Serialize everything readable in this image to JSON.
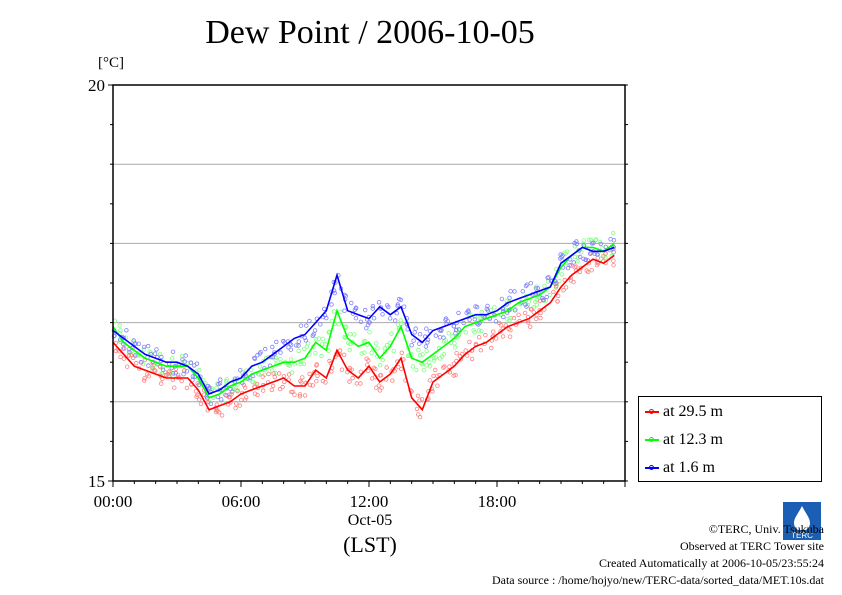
{
  "title": "Dew Point / 2006-10-05",
  "y_unit": "[°C]",
  "x_date": "Oct-05",
  "x_unit": "(LST)",
  "footer": {
    "copyright": "©TERC, Univ. Tsukuba",
    "observed": "Observed at TERC Tower site",
    "created": "Created Automatically at 2006-10-05/23:55:24",
    "source": "Data source : /home/hojyo/new/TERC-data/sorted_data/MET.10s.dat"
  },
  "logo_text": "TERC",
  "chart_data": {
    "type": "line",
    "title": "Dew Point / 2006-10-05",
    "ylabel": "[°C]",
    "xlabel": "(LST)",
    "ylim": [
      15,
      20
    ],
    "xlim": [
      0,
      24
    ],
    "yticks": [
      15,
      20
    ],
    "ytick_labels": [
      "15",
      "20"
    ],
    "ygrid": [
      16,
      17,
      18,
      19
    ],
    "xticks": [
      0,
      6,
      12,
      18
    ],
    "xtick_labels": [
      "00:00",
      "06:00",
      "12:00",
      "18:00"
    ],
    "grid": true,
    "legend_position": "right",
    "x": [
      0,
      0.5,
      1,
      1.5,
      2,
      2.5,
      3,
      3.5,
      4,
      4.5,
      5,
      5.5,
      6,
      6.5,
      7,
      7.5,
      8,
      8.5,
      9,
      9.5,
      10,
      10.5,
      11,
      11.5,
      12,
      12.5,
      13,
      13.5,
      14,
      14.5,
      15,
      15.5,
      16,
      16.5,
      17,
      17.5,
      18,
      18.5,
      19,
      19.5,
      20,
      20.5,
      21,
      21.5,
      22,
      22.5,
      23,
      23.5
    ],
    "series": [
      {
        "name": "at 29.5 m",
        "color": "#ff0000",
        "values": [
          16.75,
          16.6,
          16.45,
          16.4,
          16.35,
          16.3,
          16.3,
          16.3,
          16.15,
          15.9,
          15.95,
          16.0,
          16.1,
          16.15,
          16.2,
          16.25,
          16.3,
          16.2,
          16.2,
          16.4,
          16.3,
          16.65,
          16.4,
          16.3,
          16.45,
          16.25,
          16.35,
          16.55,
          16.05,
          15.9,
          16.25,
          16.35,
          16.45,
          16.6,
          16.7,
          16.75,
          16.85,
          16.95,
          17.0,
          17.05,
          17.15,
          17.25,
          17.45,
          17.6,
          17.7,
          17.8,
          17.75,
          17.85
        ]
      },
      {
        "name": "at 12.3 m",
        "color": "#00ff00",
        "values": [
          16.95,
          16.75,
          16.65,
          16.55,
          16.5,
          16.45,
          16.45,
          16.45,
          16.3,
          16.05,
          16.1,
          16.2,
          16.25,
          16.35,
          16.4,
          16.45,
          16.5,
          16.5,
          16.55,
          16.75,
          16.65,
          17.15,
          16.8,
          16.7,
          16.75,
          16.55,
          16.7,
          16.95,
          16.55,
          16.5,
          16.6,
          16.7,
          16.8,
          16.95,
          17.0,
          17.05,
          17.1,
          17.15,
          17.25,
          17.3,
          17.35,
          17.45,
          17.7,
          17.85,
          17.95,
          17.95,
          17.9,
          18.0
        ]
      },
      {
        "name": "at 1.6 m",
        "color": "#0000ff",
        "values": [
          16.9,
          16.8,
          16.7,
          16.6,
          16.55,
          16.5,
          16.5,
          16.45,
          16.35,
          16.1,
          16.15,
          16.25,
          16.3,
          16.45,
          16.5,
          16.6,
          16.7,
          16.8,
          16.85,
          17.0,
          17.15,
          17.6,
          17.15,
          17.1,
          17.05,
          17.2,
          17.1,
          17.2,
          16.85,
          16.75,
          16.9,
          16.95,
          17.0,
          17.05,
          17.1,
          17.1,
          17.15,
          17.25,
          17.3,
          17.35,
          17.4,
          17.45,
          17.75,
          17.85,
          17.95,
          17.9,
          17.9,
          17.95
        ]
      }
    ]
  }
}
